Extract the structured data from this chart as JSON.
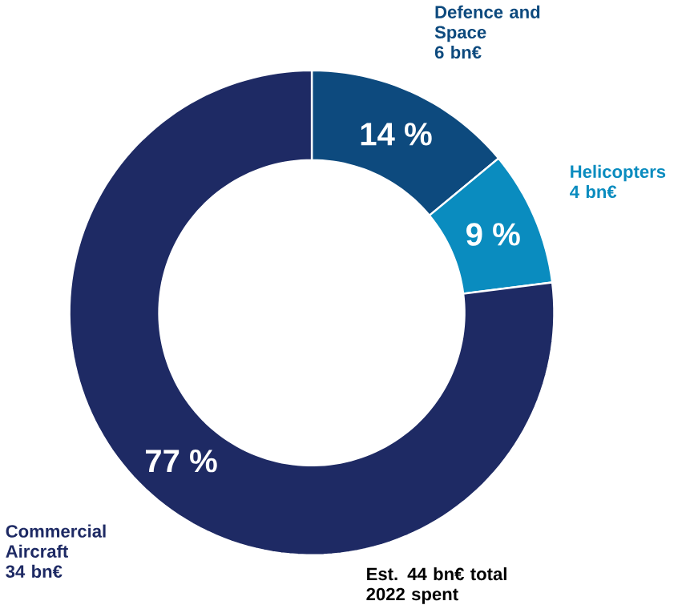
{
  "chart_data": {
    "type": "donut",
    "categories": [
      "Defence and Space",
      "Helicopters",
      "Commercial Aircraft"
    ],
    "values": [
      14,
      9,
      77
    ],
    "colors": [
      "#0d4a7e",
      "#0a8cbf",
      "#1e2a64"
    ],
    "value_labels": [
      "14 %",
      "9 %",
      "77 %"
    ],
    "annotations": [
      "6 bn€",
      "4 bn€",
      "34 bn€",
      "Est. 44 bn€ total 2022 spent"
    ]
  }
}
